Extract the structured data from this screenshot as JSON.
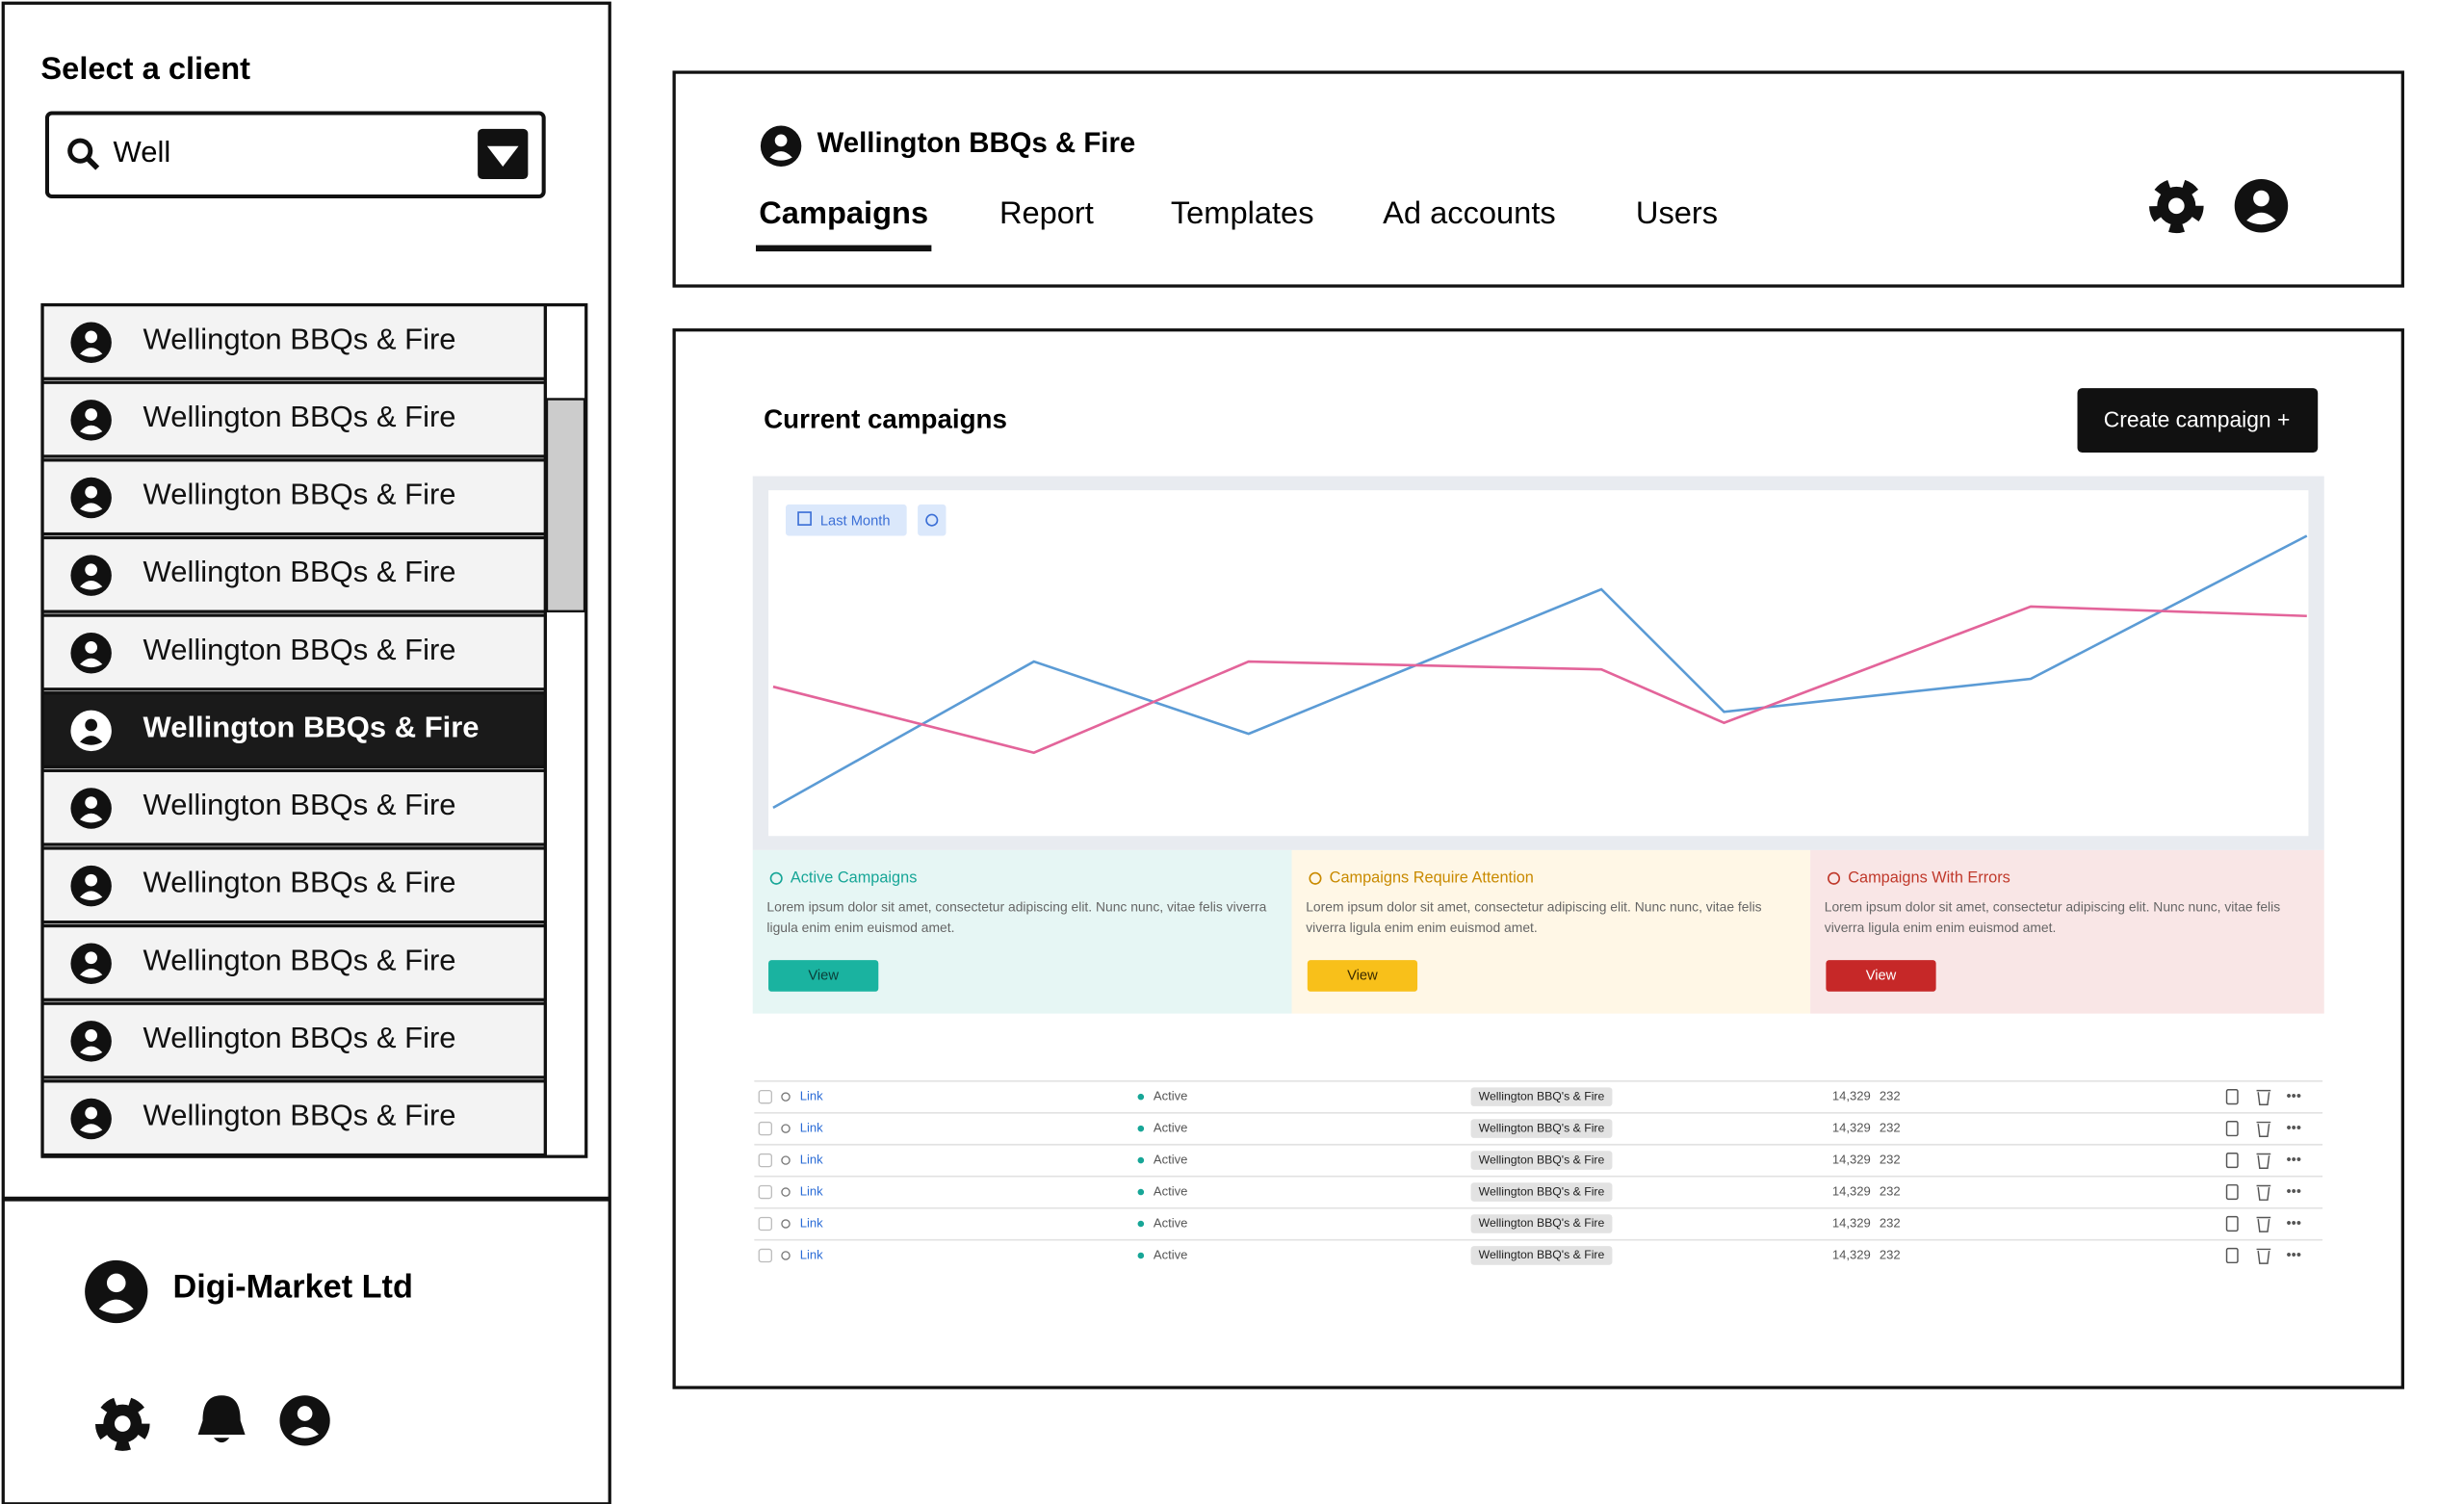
{
  "sidebar": {
    "heading": "Select a client",
    "search": "Well",
    "clients": [
      "Wellington BBQs & Fire",
      "Wellington BBQs & Fire",
      "Wellington BBQs & Fire",
      "Wellington BBQs & Fire",
      "Wellington BBQs & Fire",
      "Wellington BBQs & Fire",
      "Wellington BBQs & Fire",
      "Wellington BBQs & Fire",
      "Wellington BBQs & Fire",
      "Wellington BBQs & Fire",
      "Wellington BBQs & Fire"
    ],
    "selected_index": 5,
    "account": "Digi-Market Ltd"
  },
  "header": {
    "client": "Wellington BBQs & Fire",
    "tabs": [
      "Campaigns",
      "Report",
      "Templates",
      "Ad accounts",
      "Users"
    ],
    "active_tab": 0
  },
  "content": {
    "title": "Current campaigns",
    "button": "Create campaign +",
    "filter": "Last Month",
    "cards": [
      {
        "title": "Active Campaigns",
        "text": "Lorem ipsum dolor sit amet, consectetur adipiscing elit. Nunc nunc, vitae felis viverra ligula enim enim euismod amet.",
        "button": "View",
        "color": "#17a697"
      },
      {
        "title": "Campaigns Require Attention",
        "text": "Lorem ipsum dolor sit amet, consectetur adipiscing elit. Nunc nunc, vitae felis viverra ligula enim enim euismod amet.",
        "button": "View",
        "color": "#c98a00"
      },
      {
        "title": "Campaigns With Errors",
        "text": "Lorem ipsum dolor sit amet, consectetur adipiscing elit. Nunc nunc, vitae felis viverra ligula enim enim euismod amet.",
        "button": "View",
        "color": "#c0392b"
      }
    ],
    "table": {
      "rows": [
        [
          "Link",
          "Active",
          "Wellington BBQ's & Fire",
          "14,329",
          "232"
        ],
        [
          "Link",
          "Active",
          "Wellington BBQ's & Fire",
          "14,329",
          "232"
        ],
        [
          "Link",
          "Active",
          "Wellington BBQ's & Fire",
          "14,329",
          "232"
        ],
        [
          "Link",
          "Active",
          "Wellington BBQ's & Fire",
          "14,329",
          "232"
        ],
        [
          "Link",
          "Active",
          "Wellington BBQ's & Fire",
          "14,329",
          "232"
        ],
        [
          "Link",
          "Active",
          "Wellington BBQ's & Fire",
          "14,329",
          "232"
        ]
      ]
    }
  },
  "chart_data": {
    "type": "line",
    "x": [
      0,
      17,
      31,
      54,
      62,
      82,
      100
    ],
    "xlim": [
      0,
      100
    ],
    "ylim": [
      0,
      100
    ],
    "series": [
      {
        "color": "#5b9bd5",
        "values": [
          8,
          54.5,
          31.5,
          77.5,
          38.5,
          49,
          94.5
        ]
      },
      {
        "color": "#e3649a",
        "values": [
          46.5,
          25.5,
          54.5,
          52,
          35,
          72,
          69
        ]
      }
    ]
  }
}
